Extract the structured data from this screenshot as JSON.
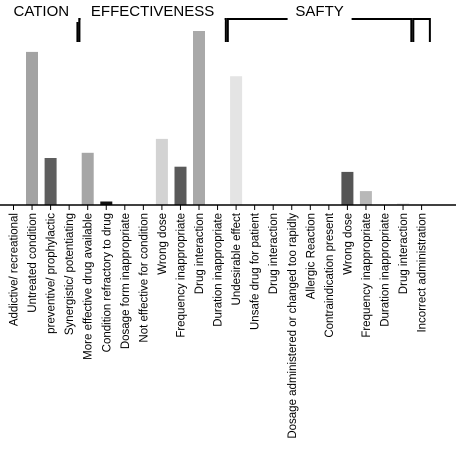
{
  "chart_data": {
    "type": "bar",
    "title": "",
    "xlabel": "",
    "ylabel": "",
    "ylim": [
      0,
      100
    ],
    "groups": [
      {
        "label": "CATION",
        "start": 0,
        "end": 3
      },
      {
        "label": "EFFECTIVENESS",
        "start": 4,
        "end": 11
      },
      {
        "label": "SAFTY",
        "start": 12,
        "end": 21
      },
      {
        "label": "",
        "start": 22,
        "end": 22
      }
    ],
    "categories": [
      "Addictive/ recreational",
      "Untreated condition",
      "preventive/ prophylactic",
      "Synergistic/ potentiating",
      "More effective drug available",
      "Condition refractory to drug",
      "Dosage form inappropriate",
      "Not effective for condition",
      "Wrong dose",
      "Frequency inappropriate",
      "Drug interaction",
      "Duration inappropriate",
      "Undesirable effect",
      "Unsafe drug for patient",
      "Drug interaction",
      "Dosage administered or changed too rapidly",
      "Allergic Reaction",
      "Contraindication present",
      "Wrong dose",
      "Frequency inappropriate",
      "Duration inappropriate",
      "Drug interaction",
      "Incorrect administration"
    ],
    "values": [
      0,
      88,
      27,
      0,
      30,
      2,
      0,
      0,
      38,
      22,
      100,
      0,
      74,
      0,
      0,
      0,
      0,
      0,
      19,
      8,
      0,
      1,
      0
    ],
    "colors": [
      "#9a9a9a",
      "#a3a3a3",
      "#5e5e5e",
      "#9a9a9a",
      "#a6a6a6",
      "#111111",
      "#9a9a9a",
      "#9a9a9a",
      "#d3d3d3",
      "#5a5a5a",
      "#a9a9a9",
      "#9a9a9a",
      "#e4e4e4",
      "#9a9a9a",
      "#9a9a9a",
      "#9a9a9a",
      "#9a9a9a",
      "#9a9a9a",
      "#555555",
      "#b8b8b8",
      "#9a9a9a",
      "#e6e6e6",
      "#9a9a9a"
    ],
    "grid": false,
    "legend": "none"
  }
}
